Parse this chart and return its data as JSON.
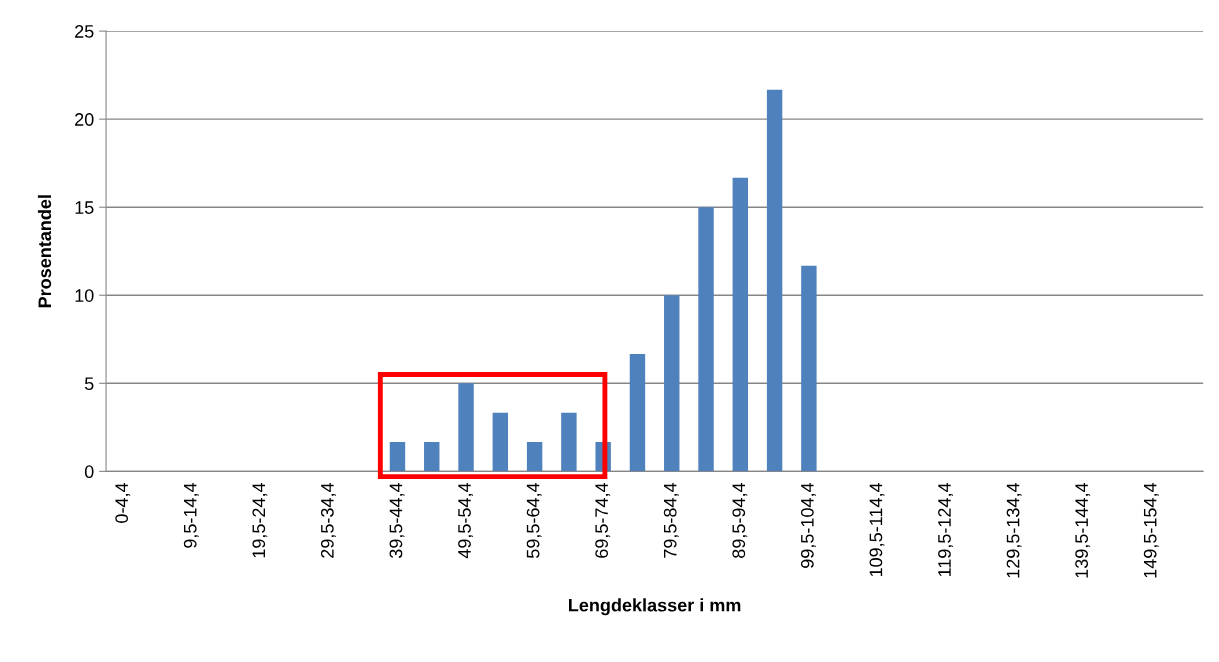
{
  "chart_data": {
    "type": "bar",
    "xlabel": "Lengdeklasser i mm",
    "ylabel": "Prosentandel",
    "categories": [
      "0-4,4",
      null,
      "9,5-14,4",
      null,
      "19,5-24,4",
      null,
      "29,5-34,4",
      null,
      "39,5-44,4",
      null,
      "49,5-54,4",
      null,
      "59,5-64,4",
      null,
      "69,5-74,4",
      null,
      "79,5-84,4",
      null,
      "89,5-94,4",
      null,
      "99,5-104,4",
      null,
      "109,5-114,4",
      null,
      "119,5-124,4",
      null,
      "129,5-134,4",
      null,
      "139,5-144,4",
      null,
      "149,5-154,4",
      null
    ],
    "values": [
      0,
      0,
      0,
      0,
      0,
      0,
      0,
      0,
      1.67,
      1.67,
      5,
      3.33,
      1.67,
      3.33,
      1.67,
      6.67,
      10,
      15,
      16.67,
      21.67,
      11.67,
      0,
      0,
      0,
      0,
      0,
      0,
      0,
      0,
      0,
      0,
      0
    ],
    "color": "#4f81bd",
    "ylim": [
      0,
      25
    ],
    "yticks": [
      0,
      5,
      10,
      15,
      20,
      25
    ],
    "grid": "y"
  }
}
